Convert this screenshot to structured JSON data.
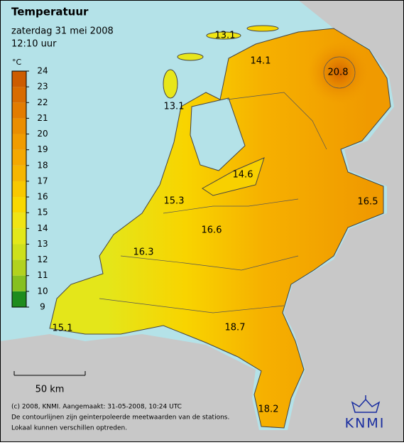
{
  "header": {
    "title": "Temperatuur",
    "date": "zaterdag 31 mei 2008",
    "time": "12:10 uur"
  },
  "legend": {
    "unit": "°C",
    "ticks": [
      9,
      10,
      11,
      12,
      13,
      14,
      15,
      16,
      17,
      18,
      19,
      20,
      21,
      22,
      23,
      24
    ],
    "colors": [
      "#1e8c1e",
      "#86c020",
      "#b2d21e",
      "#cde01c",
      "#e2e81a",
      "#f0e414",
      "#f8d800",
      "#f8c800",
      "#f6b600",
      "#f5a800",
      "#f09c00",
      "#ea8e00",
      "#e27c00",
      "#d86c00",
      "#cc5c00"
    ]
  },
  "stations": [
    {
      "value": 13.1
    },
    {
      "value": 14.1
    },
    {
      "value": 20.8
    },
    {
      "value": 13.1
    },
    {
      "value": 14.6
    },
    {
      "value": 16.5
    },
    {
      "value": 15.3
    },
    {
      "value": 16.6
    },
    {
      "value": 16.3
    },
    {
      "value": 18.7
    },
    {
      "value": 15.1
    },
    {
      "value": 18.2
    }
  ],
  "scale_bar": "50 km",
  "footer": [
    "(c) 2008, KNMI. Aangemaakt: 31-05-2008, 10:24 UTC",
    "De contourlijnen zijn geinterpoleerde meetwaarden van de stations.",
    "Lokaal kunnen verschillen optreden."
  ],
  "logo": "KNMI"
}
